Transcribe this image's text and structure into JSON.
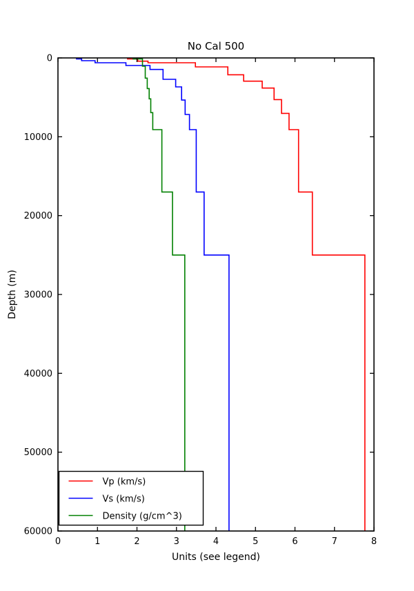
{
  "title": "No Cal 500",
  "chart_data": {
    "type": "line",
    "subtype": "step-depth-profile",
    "title": "No Cal 500",
    "xlabel": "Units (see legend)",
    "ylabel": "Depth (m)",
    "xlim": [
      0,
      8
    ],
    "ylim": [
      0,
      60000
    ],
    "y_inverted": true,
    "x_ticks": [
      0,
      1,
      2,
      3,
      4,
      5,
      6,
      7,
      8
    ],
    "y_ticks": [
      0,
      10000,
      20000,
      30000,
      40000,
      50000,
      60000
    ],
    "grid": false,
    "legend_position": "lower left",
    "frame_color": "#000000",
    "bottom_depth": 60000,
    "series": [
      {
        "key": "vp",
        "name": "Vp (km/s)",
        "color": "#ff0000",
        "layers_depth_value": [
          [
            0,
            1.76
          ],
          [
            120,
            2.02
          ],
          [
            410,
            2.28
          ],
          [
            610,
            3.48
          ],
          [
            1140,
            4.3
          ],
          [
            2130,
            4.7
          ],
          [
            2950,
            5.17
          ],
          [
            3820,
            5.47
          ],
          [
            5280,
            5.66
          ],
          [
            7030,
            5.85
          ],
          [
            9100,
            6.09
          ],
          [
            17000,
            6.44
          ],
          [
            25000,
            7.77
          ]
        ]
      },
      {
        "key": "vs",
        "name": "Vs (km/s)",
        "color": "#0000ff",
        "layers_depth_value": [
          [
            0,
            0.47
          ],
          [
            120,
            0.6
          ],
          [
            350,
            0.94
          ],
          [
            610,
            1.72
          ],
          [
            960,
            2.33
          ],
          [
            1460,
            2.66
          ],
          [
            2710,
            2.98
          ],
          [
            3670,
            3.13
          ],
          [
            5340,
            3.22
          ],
          [
            7170,
            3.33
          ],
          [
            9100,
            3.5
          ],
          [
            17000,
            3.7
          ],
          [
            25000,
            4.33
          ]
        ]
      },
      {
        "key": "density",
        "name": "Density (g/cm^3)",
        "color": "#008000",
        "layers_depth_value": [
          [
            0,
            1.9
          ],
          [
            120,
            2.14
          ],
          [
            1050,
            2.21
          ],
          [
            2560,
            2.26
          ],
          [
            3880,
            2.31
          ],
          [
            5190,
            2.35
          ],
          [
            6940,
            2.4
          ],
          [
            9100,
            2.63
          ],
          [
            17000,
            2.9
          ],
          [
            25000,
            3.21
          ]
        ]
      }
    ]
  }
}
